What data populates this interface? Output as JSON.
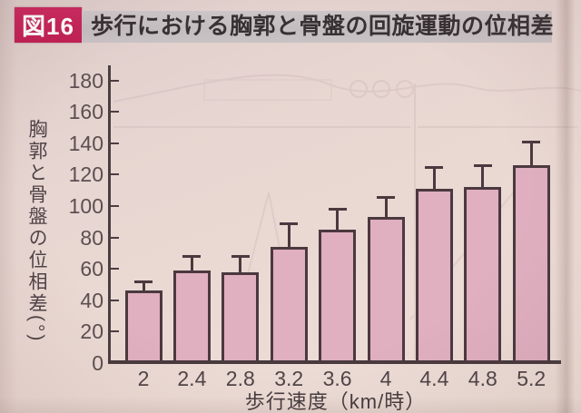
{
  "figure": {
    "tag": "図16",
    "title": "歩行における胸郭と骨盤の回旋運動の位相差"
  },
  "chart_data": {
    "type": "bar",
    "title": "歩行における胸郭と骨盤の回旋運動の位相差",
    "categories": [
      "2",
      "2.4",
      "2.8",
      "3.2",
      "3.6",
      "4",
      "4.4",
      "4.8",
      "5.2"
    ],
    "values": [
      46,
      59,
      58,
      74,
      85,
      93,
      111,
      112,
      126
    ],
    "error_plus": [
      6,
      9,
      10,
      15,
      13,
      13,
      14,
      14,
      15
    ],
    "xlabel": "歩行速度（km/時）",
    "ylabel": "胸郭と骨盤の位相差(°)",
    "ylim": [
      0,
      180
    ],
    "ytick_step": 20,
    "grid": false,
    "legend": "none",
    "bar_color": "#e0afc0",
    "bar_border_color": "#4b3940",
    "axis_color": "#4a3e41",
    "tag_color": "#c32157",
    "band_color": "#c8c1c3"
  }
}
